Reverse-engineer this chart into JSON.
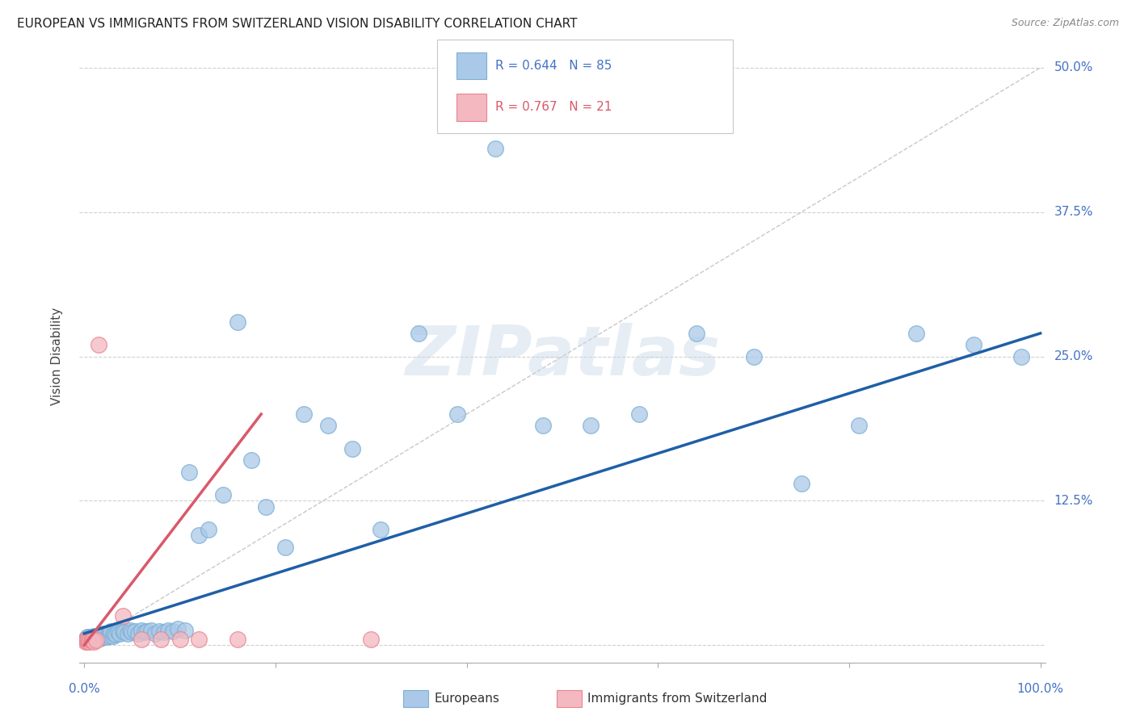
{
  "title": "EUROPEAN VS IMMIGRANTS FROM SWITZERLAND VISION DISABILITY CORRELATION CHART",
  "source": "Source: ZipAtlas.com",
  "ylabel": "Vision Disability",
  "yticks": [
    0.0,
    0.125,
    0.25,
    0.375,
    0.5
  ],
  "background_color": "#ffffff",
  "watermark": "ZIPatlas",
  "blue_scatter_color": "#aac9e8",
  "blue_edge_color": "#7bafd4",
  "pink_scatter_color": "#f4b8c1",
  "pink_edge_color": "#e8848e",
  "blue_line_color": "#1f5fa6",
  "pink_line_color": "#d9596a",
  "diag_color": "#c8c8c8",
  "grid_color": "#d0d0d0",
  "europeans_x": [
    0.001,
    0.002,
    0.002,
    0.003,
    0.003,
    0.004,
    0.004,
    0.005,
    0.005,
    0.006,
    0.006,
    0.007,
    0.007,
    0.008,
    0.008,
    0.009,
    0.009,
    0.01,
    0.01,
    0.011,
    0.012,
    0.012,
    0.013,
    0.014,
    0.015,
    0.016,
    0.017,
    0.018,
    0.019,
    0.02,
    0.021,
    0.022,
    0.023,
    0.025,
    0.026,
    0.027,
    0.028,
    0.03,
    0.031,
    0.033,
    0.035,
    0.037,
    0.04,
    0.042,
    0.045,
    0.048,
    0.05,
    0.053,
    0.056,
    0.06,
    0.063,
    0.066,
    0.07,
    0.074,
    0.078,
    0.083,
    0.088,
    0.093,
    0.098,
    0.105,
    0.11,
    0.12,
    0.13,
    0.145,
    0.16,
    0.175,
    0.19,
    0.21,
    0.23,
    0.255,
    0.28,
    0.31,
    0.35,
    0.39,
    0.43,
    0.48,
    0.53,
    0.58,
    0.64,
    0.7,
    0.75,
    0.81,
    0.87,
    0.93,
    0.98
  ],
  "europeans_y": [
    0.004,
    0.005,
    0.006,
    0.004,
    0.007,
    0.005,
    0.006,
    0.004,
    0.007,
    0.005,
    0.006,
    0.004,
    0.007,
    0.005,
    0.006,
    0.004,
    0.007,
    0.005,
    0.008,
    0.006,
    0.007,
    0.008,
    0.006,
    0.007,
    0.008,
    0.007,
    0.006,
    0.009,
    0.007,
    0.01,
    0.008,
    0.009,
    0.007,
    0.01,
    0.009,
    0.008,
    0.012,
    0.008,
    0.01,
    0.009,
    0.011,
    0.01,
    0.012,
    0.011,
    0.01,
    0.013,
    0.011,
    0.012,
    0.01,
    0.013,
    0.011,
    0.012,
    0.013,
    0.01,
    0.012,
    0.011,
    0.013,
    0.012,
    0.014,
    0.013,
    0.15,
    0.095,
    0.1,
    0.13,
    0.28,
    0.16,
    0.12,
    0.085,
    0.2,
    0.19,
    0.17,
    0.1,
    0.27,
    0.2,
    0.43,
    0.19,
    0.19,
    0.2,
    0.27,
    0.25,
    0.14,
    0.19,
    0.27,
    0.26,
    0.25
  ],
  "swiss_x": [
    0.001,
    0.002,
    0.002,
    0.003,
    0.003,
    0.004,
    0.005,
    0.006,
    0.007,
    0.008,
    0.009,
    0.01,
    0.012,
    0.015,
    0.04,
    0.06,
    0.08,
    0.1,
    0.12,
    0.16,
    0.3
  ],
  "swiss_y": [
    0.003,
    0.004,
    0.005,
    0.003,
    0.005,
    0.004,
    0.003,
    0.005,
    0.004,
    0.005,
    0.004,
    0.003,
    0.004,
    0.26,
    0.025,
    0.005,
    0.005,
    0.005,
    0.005,
    0.005,
    0.005
  ],
  "blue_trend": [
    0.0,
    1.0,
    0.01,
    0.27
  ],
  "pink_trend": [
    0.0,
    0.185,
    0.0,
    0.2
  ]
}
